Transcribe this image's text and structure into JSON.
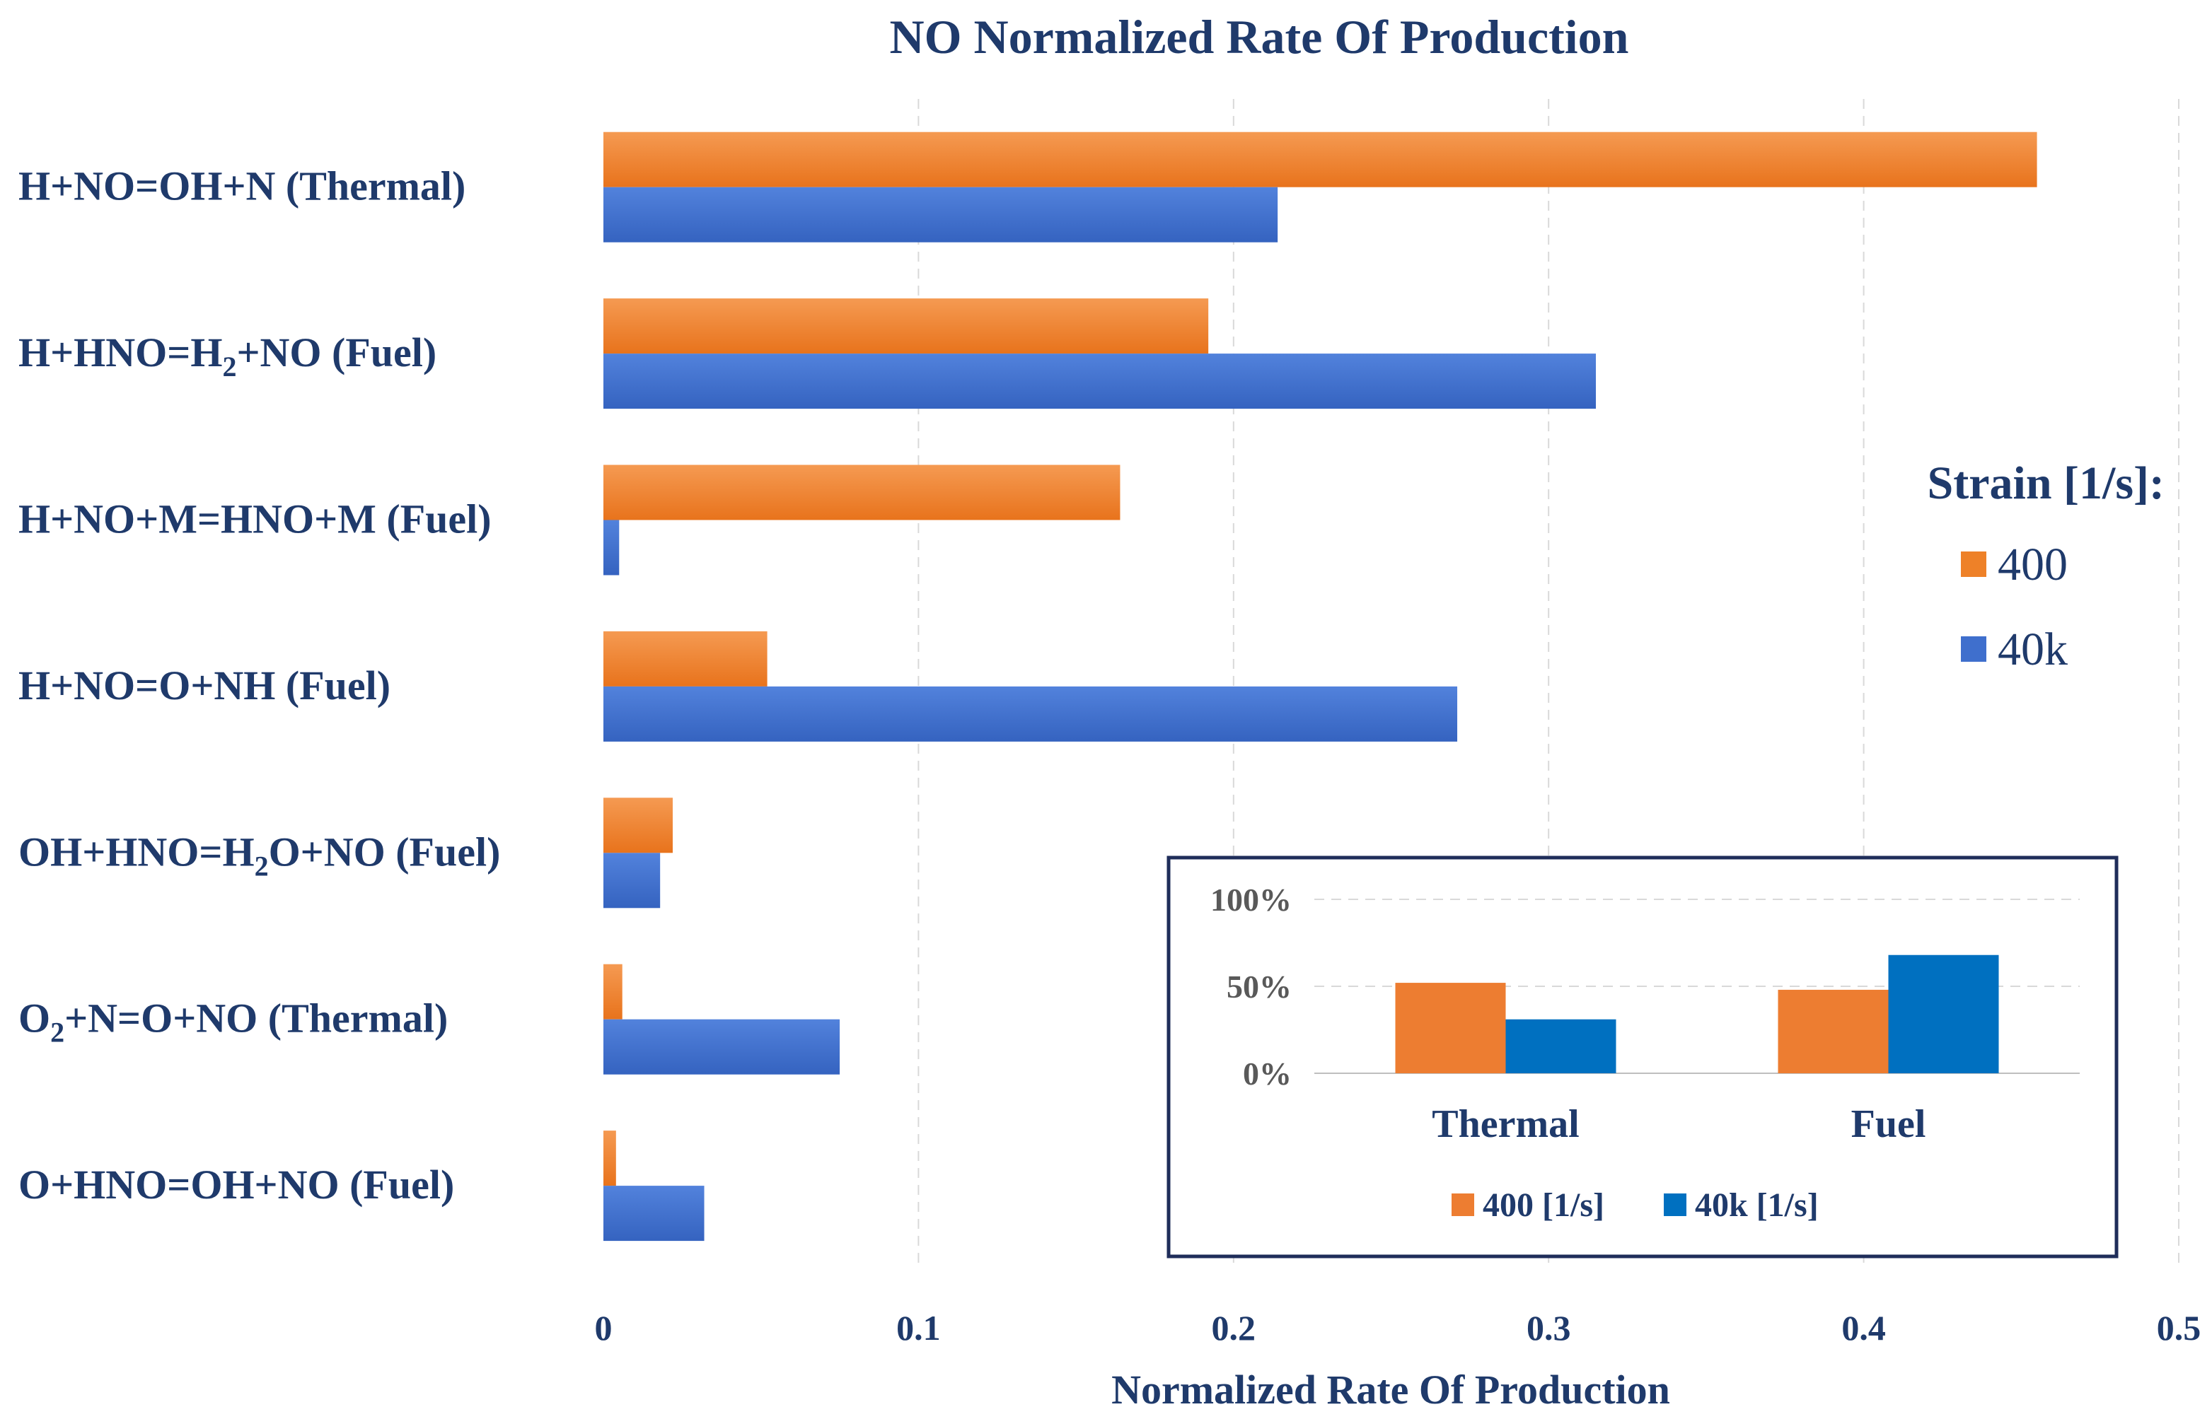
{
  "colors": {
    "orange": "#ee8128",
    "blue": "#3f6fcd",
    "inset_orange": "#ed7d31",
    "inset_blue": "#0070c0",
    "text": "#1f3a6b",
    "frame": "#1f2d5a"
  },
  "chart_data": [
    {
      "type": "bar",
      "orientation": "horizontal",
      "title": "NO Normalized Rate Of Production",
      "xlabel": "Normalized Rate Of Production",
      "ylabel": "",
      "xlim": [
        0,
        0.5
      ],
      "xticks": [
        "0",
        "0.1",
        "0.2",
        "0.3",
        "0.4",
        "0.5"
      ],
      "grid": true,
      "categories": [
        {
          "pre": "H+NO=OH+N (Thermal)",
          "sub": "",
          "post": ""
        },
        {
          "pre": "H+HNO=H",
          "sub": "2",
          "post": "+NO (Fuel)"
        },
        {
          "pre": "H+NO+M=HNO+M (Fuel)",
          "sub": "",
          "post": ""
        },
        {
          "pre": "H+NO=O+NH (Fuel)",
          "sub": "",
          "post": ""
        },
        {
          "pre": "OH+HNO=H",
          "sub": "2",
          "post": "O+NO (Fuel)"
        },
        {
          "pre": "O",
          "sub": "2",
          "post": "+N=O+NO (Thermal)"
        },
        {
          "pre": "O+HNO=OH+NO (Fuel)",
          "sub": "",
          "post": ""
        }
      ],
      "series": [
        {
          "name": "400",
          "values": [
            0.455,
            0.192,
            0.164,
            0.052,
            0.022,
            0.006,
            0.004
          ]
        },
        {
          "name": "40k",
          "values": [
            0.214,
            0.315,
            0.005,
            0.271,
            0.018,
            0.075,
            0.032
          ]
        }
      ],
      "legend": {
        "title": "Strain [1/s]:",
        "position": "right"
      }
    },
    {
      "type": "bar",
      "title": "",
      "categories": [
        "Thermal",
        "Fuel"
      ],
      "ylim": [
        0,
        100
      ],
      "yticks": [
        "100%",
        "50%",
        "0%"
      ],
      "series": [
        {
          "name": "400 [1/s]",
          "values": [
            52,
            48
          ]
        },
        {
          "name": "40k [1/s]",
          "values": [
            31,
            68
          ]
        }
      ],
      "legend": {
        "position": "bottom"
      },
      "placement": "inset-bottom-right"
    }
  ]
}
